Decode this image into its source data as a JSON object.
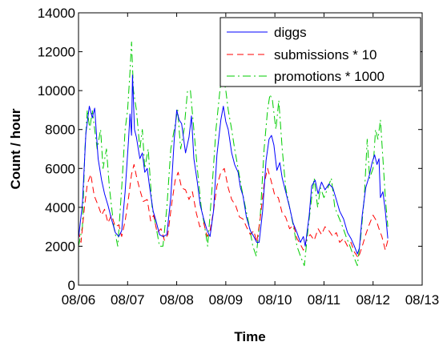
{
  "chart_data": {
    "type": "line",
    "xlabel": "Time",
    "ylabel": "Count / hour",
    "x_ticks": [
      "08/06",
      "08/07",
      "08/08",
      "08/09",
      "08/10",
      "08/11",
      "08/12",
      "08/13"
    ],
    "ylim": [
      0,
      14000
    ],
    "y_ticks": [
      0,
      2000,
      4000,
      6000,
      8000,
      10000,
      12000,
      14000
    ],
    "grid": false,
    "legend_position": "top-right",
    "x_unit": "days since 08/06",
    "series": [
      {
        "name": "diggs",
        "color": "#0000ff",
        "style": "solid",
        "points": [
          [
            0.0,
            2400
          ],
          [
            0.08,
            4200
          ],
          [
            0.15,
            7800
          ],
          [
            0.22,
            9200
          ],
          [
            0.28,
            8600
          ],
          [
            0.33,
            9100
          ],
          [
            0.4,
            6500
          ],
          [
            0.47,
            5400
          ],
          [
            0.53,
            4700
          ],
          [
            0.6,
            4100
          ],
          [
            0.67,
            3400
          ],
          [
            0.75,
            2700
          ],
          [
            0.82,
            2500
          ],
          [
            0.88,
            2800
          ],
          [
            0.95,
            4800
          ],
          [
            1.02,
            7500
          ],
          [
            1.05,
            8800
          ],
          [
            1.08,
            7700
          ],
          [
            1.1,
            10800
          ],
          [
            1.14,
            8000
          ],
          [
            1.18,
            7600
          ],
          [
            1.25,
            6500
          ],
          [
            1.3,
            6800
          ],
          [
            1.35,
            5800
          ],
          [
            1.4,
            6000
          ],
          [
            1.45,
            5000
          ],
          [
            1.52,
            3800
          ],
          [
            1.58,
            3300
          ],
          [
            1.65,
            2600
          ],
          [
            1.72,
            2500
          ],
          [
            1.8,
            2600
          ],
          [
            1.88,
            4500
          ],
          [
            1.95,
            7500
          ],
          [
            2.0,
            9000
          ],
          [
            2.05,
            8500
          ],
          [
            2.1,
            8300
          ],
          [
            2.18,
            6800
          ],
          [
            2.25,
            7600
          ],
          [
            2.3,
            8700
          ],
          [
            2.35,
            6500
          ],
          [
            2.42,
            5300
          ],
          [
            2.48,
            4100
          ],
          [
            2.55,
            3400
          ],
          [
            2.62,
            2800
          ],
          [
            2.68,
            2500
          ],
          [
            2.75,
            3800
          ],
          [
            2.82,
            6700
          ],
          [
            2.9,
            8500
          ],
          [
            2.95,
            9200
          ],
          [
            3.0,
            8400
          ],
          [
            3.05,
            8000
          ],
          [
            3.12,
            6800
          ],
          [
            3.18,
            6200
          ],
          [
            3.25,
            5800
          ],
          [
            3.3,
            5000
          ],
          [
            3.35,
            4600
          ],
          [
            3.42,
            3500
          ],
          [
            3.5,
            2800
          ],
          [
            3.57,
            2500
          ],
          [
            3.63,
            2200
          ],
          [
            3.68,
            2200
          ],
          [
            3.75,
            3800
          ],
          [
            3.82,
            6400
          ],
          [
            3.88,
            7500
          ],
          [
            3.93,
            7700
          ],
          [
            3.98,
            7200
          ],
          [
            4.04,
            5900
          ],
          [
            4.1,
            6300
          ],
          [
            4.15,
            5500
          ],
          [
            4.22,
            4800
          ],
          [
            4.3,
            4000
          ],
          [
            4.37,
            3200
          ],
          [
            4.45,
            2700
          ],
          [
            4.52,
            2200
          ],
          [
            4.58,
            2500
          ],
          [
            4.62,
            2000
          ],
          [
            4.7,
            3600
          ],
          [
            4.75,
            5100
          ],
          [
            4.82,
            5400
          ],
          [
            4.88,
            4700
          ],
          [
            4.95,
            5300
          ],
          [
            5.02,
            4900
          ],
          [
            5.1,
            5200
          ],
          [
            5.18,
            5000
          ],
          [
            5.25,
            4400
          ],
          [
            5.32,
            3800
          ],
          [
            5.4,
            3400
          ],
          [
            5.48,
            2700
          ],
          [
            5.55,
            2400
          ],
          [
            5.62,
            2000
          ],
          [
            5.68,
            1600
          ],
          [
            5.72,
            1900
          ],
          [
            5.78,
            3600
          ],
          [
            5.85,
            5000
          ],
          [
            5.92,
            5600
          ],
          [
            5.98,
            6300
          ],
          [
            6.03,
            6700
          ],
          [
            6.08,
            6200
          ],
          [
            6.12,
            6500
          ],
          [
            6.15,
            4500
          ],
          [
            6.2,
            4800
          ],
          [
            6.25,
            3800
          ],
          [
            6.3,
            2400
          ]
        ]
      },
      {
        "name": "submissions * 10",
        "color": "#ff0000",
        "style": "dashed",
        "points": [
          [
            0.0,
            2800
          ],
          [
            0.05,
            2200
          ],
          [
            0.12,
            4000
          ],
          [
            0.18,
            5200
          ],
          [
            0.25,
            5700
          ],
          [
            0.32,
            4600
          ],
          [
            0.4,
            4100
          ],
          [
            0.47,
            3600
          ],
          [
            0.53,
            3900
          ],
          [
            0.6,
            3200
          ],
          [
            0.67,
            3600
          ],
          [
            0.75,
            3000
          ],
          [
            0.82,
            3100
          ],
          [
            0.88,
            2500
          ],
          [
            0.95,
            3300
          ],
          [
            1.02,
            4500
          ],
          [
            1.08,
            5700
          ],
          [
            1.13,
            6200
          ],
          [
            1.18,
            5600
          ],
          [
            1.25,
            4900
          ],
          [
            1.32,
            4300
          ],
          [
            1.4,
            4400
          ],
          [
            1.47,
            3300
          ],
          [
            1.53,
            3600
          ],
          [
            1.6,
            2700
          ],
          [
            1.68,
            2900
          ],
          [
            1.75,
            2300
          ],
          [
            1.82,
            2600
          ],
          [
            1.9,
            4200
          ],
          [
            1.97,
            5400
          ],
          [
            2.03,
            5800
          ],
          [
            2.1,
            5000
          ],
          [
            2.18,
            4900
          ],
          [
            2.25,
            4400
          ],
          [
            2.32,
            4800
          ],
          [
            2.4,
            3700
          ],
          [
            2.47,
            3000
          ],
          [
            2.55,
            3200
          ],
          [
            2.62,
            2500
          ],
          [
            2.68,
            2800
          ],
          [
            2.75,
            3800
          ],
          [
            2.82,
            5100
          ],
          [
            2.9,
            5800
          ],
          [
            2.97,
            6000
          ],
          [
            3.05,
            5000
          ],
          [
            3.12,
            4400
          ],
          [
            3.2,
            4100
          ],
          [
            3.28,
            3500
          ],
          [
            3.35,
            3400
          ],
          [
            3.42,
            3000
          ],
          [
            3.5,
            2600
          ],
          [
            3.57,
            2800
          ],
          [
            3.63,
            2200
          ],
          [
            3.7,
            3400
          ],
          [
            3.78,
            5200
          ],
          [
            3.85,
            6000
          ],
          [
            3.92,
            5400
          ],
          [
            4.0,
            4600
          ],
          [
            4.07,
            4500
          ],
          [
            4.15,
            3700
          ],
          [
            4.22,
            3500
          ],
          [
            4.3,
            2900
          ],
          [
            4.38,
            3100
          ],
          [
            4.45,
            2400
          ],
          [
            4.52,
            2100
          ],
          [
            4.58,
            1800
          ],
          [
            4.65,
            2400
          ],
          [
            4.72,
            2600
          ],
          [
            4.8,
            2300
          ],
          [
            4.88,
            2900
          ],
          [
            4.95,
            2600
          ],
          [
            5.02,
            3000
          ],
          [
            5.1,
            2800
          ],
          [
            5.18,
            2500
          ],
          [
            5.25,
            2700
          ],
          [
            5.32,
            2200
          ],
          [
            5.4,
            2400
          ],
          [
            5.48,
            2000
          ],
          [
            5.55,
            2200
          ],
          [
            5.62,
            1700
          ],
          [
            5.7,
            1400
          ],
          [
            5.78,
            2000
          ],
          [
            5.85,
            2600
          ],
          [
            5.92,
            3100
          ],
          [
            6.0,
            3600
          ],
          [
            6.07,
            3300
          ],
          [
            6.12,
            2900
          ],
          [
            6.18,
            2500
          ],
          [
            6.25,
            1800
          ],
          [
            6.3,
            2300
          ]
        ]
      },
      {
        "name": "promotions * 1000",
        "color": "#00cc00",
        "style": "dashdot",
        "points": [
          [
            0.0,
            2000
          ],
          [
            0.08,
            3000
          ],
          [
            0.13,
            7000
          ],
          [
            0.18,
            9000
          ],
          [
            0.23,
            8000
          ],
          [
            0.28,
            9000
          ],
          [
            0.33,
            8000
          ],
          [
            0.38,
            7000
          ],
          [
            0.45,
            8000
          ],
          [
            0.5,
            6000
          ],
          [
            0.57,
            7000
          ],
          [
            0.63,
            5000
          ],
          [
            0.72,
            3000
          ],
          [
            0.8,
            2000
          ],
          [
            0.88,
            5000
          ],
          [
            0.95,
            8000
          ],
          [
            1.0,
            9000
          ],
          [
            1.05,
            11000
          ],
          [
            1.08,
            12500
          ],
          [
            1.12,
            10000
          ],
          [
            1.18,
            9000
          ],
          [
            1.25,
            7000
          ],
          [
            1.3,
            8000
          ],
          [
            1.35,
            6000
          ],
          [
            1.42,
            7000
          ],
          [
            1.5,
            4000
          ],
          [
            1.58,
            3000
          ],
          [
            1.65,
            2000
          ],
          [
            1.72,
            2000
          ],
          [
            1.8,
            4000
          ],
          [
            1.88,
            7000
          ],
          [
            1.95,
            8000
          ],
          [
            2.02,
            9000
          ],
          [
            2.08,
            7000
          ],
          [
            2.15,
            8000
          ],
          [
            2.22,
            10000
          ],
          [
            2.28,
            10000
          ],
          [
            2.35,
            8000
          ],
          [
            2.42,
            6000
          ],
          [
            2.5,
            4000
          ],
          [
            2.57,
            3000
          ],
          [
            2.63,
            2000
          ],
          [
            2.72,
            5000
          ],
          [
            2.8,
            8000
          ],
          [
            2.88,
            10000
          ],
          [
            2.93,
            11000
          ],
          [
            3.0,
            10000
          ],
          [
            3.05,
            9000
          ],
          [
            3.12,
            8000
          ],
          [
            3.18,
            7000
          ],
          [
            3.25,
            6000
          ],
          [
            3.32,
            5000
          ],
          [
            3.4,
            4000
          ],
          [
            3.48,
            3000
          ],
          [
            3.55,
            2000
          ],
          [
            3.62,
            1500
          ],
          [
            3.7,
            3500
          ],
          [
            3.78,
            7000
          ],
          [
            3.85,
            9000
          ],
          [
            3.9,
            9800
          ],
          [
            3.95,
            9500
          ],
          [
            4.02,
            8000
          ],
          [
            4.08,
            9500
          ],
          [
            4.15,
            7000
          ],
          [
            4.22,
            5000
          ],
          [
            4.3,
            4000
          ],
          [
            4.38,
            3000
          ],
          [
            4.45,
            2000
          ],
          [
            4.52,
            1500
          ],
          [
            4.6,
            1000
          ],
          [
            4.68,
            3000
          ],
          [
            4.75,
            4500
          ],
          [
            4.8,
            5500
          ],
          [
            4.87,
            4000
          ],
          [
            4.93,
            5000
          ],
          [
            5.0,
            4500
          ],
          [
            5.08,
            5000
          ],
          [
            5.15,
            5500
          ],
          [
            5.22,
            4000
          ],
          [
            5.3,
            3500
          ],
          [
            5.38,
            3000
          ],
          [
            5.45,
            2500
          ],
          [
            5.53,
            2000
          ],
          [
            5.6,
            1500
          ],
          [
            5.68,
            1000
          ],
          [
            5.75,
            2500
          ],
          [
            5.82,
            4500
          ],
          [
            5.88,
            7500
          ],
          [
            5.93,
            5500
          ],
          [
            6.0,
            6000
          ],
          [
            6.05,
            8000
          ],
          [
            6.1,
            7500
          ],
          [
            6.15,
            8500
          ],
          [
            6.2,
            6500
          ],
          [
            6.25,
            4500
          ],
          [
            6.3,
            3000
          ]
        ]
      }
    ]
  }
}
